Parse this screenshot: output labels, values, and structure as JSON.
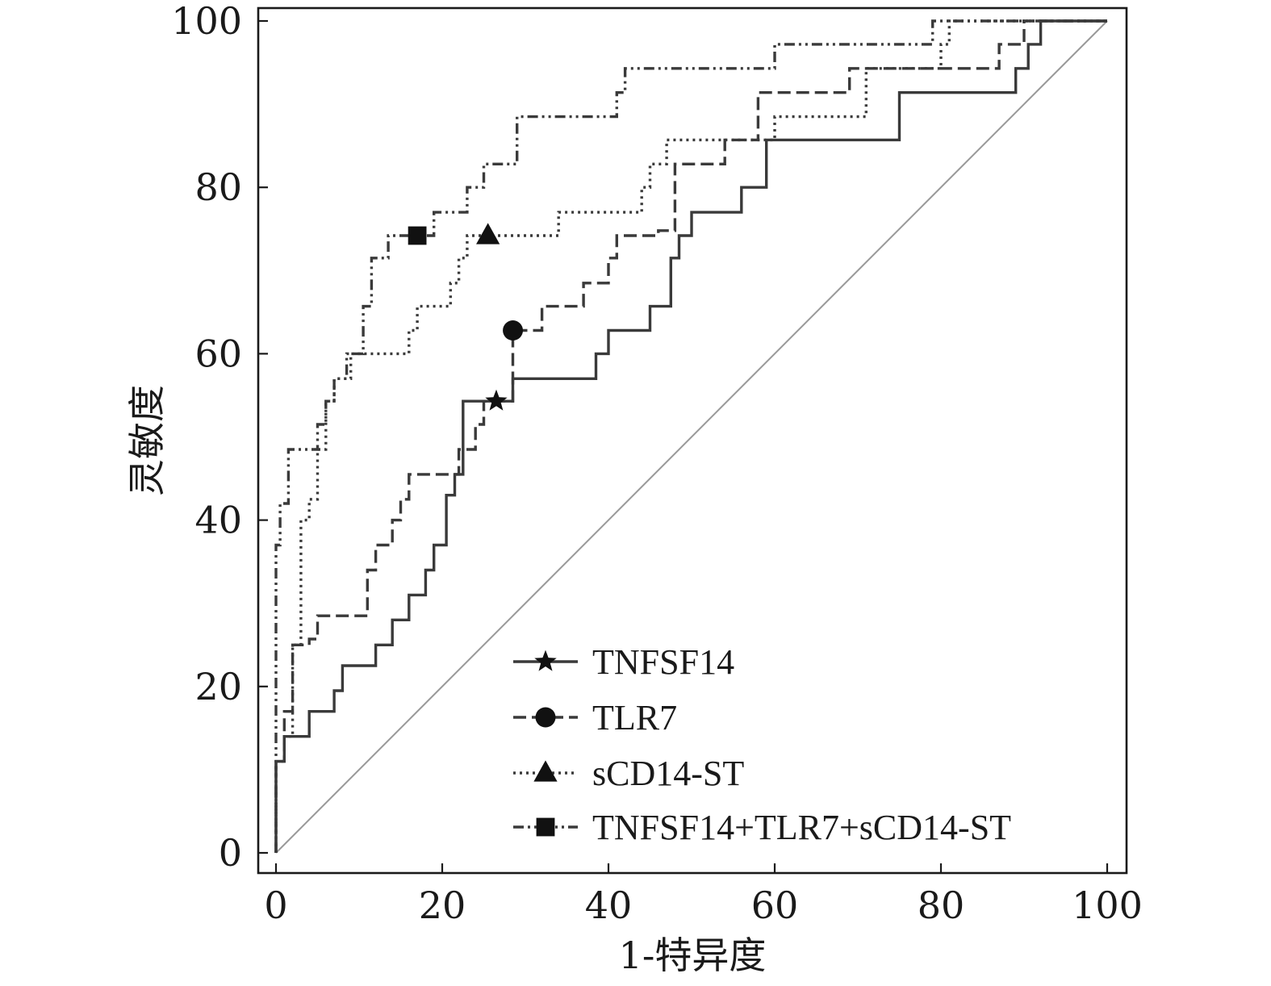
{
  "chart_data": {
    "type": "line",
    "xlabel": "1-特异度",
    "ylabel": "灵敏度",
    "xlim": [
      0,
      100
    ],
    "ylim": [
      0,
      100
    ],
    "xticks": [
      0,
      20,
      40,
      60,
      80,
      100
    ],
    "yticks": [
      0,
      20,
      40,
      60,
      80,
      100
    ],
    "legend_position": "bottom-right",
    "reference_line": {
      "from": [
        0,
        0
      ],
      "to": [
        100,
        100
      ],
      "color": "#999999"
    },
    "series": [
      {
        "name": "TNFSF14",
        "marker": "star",
        "dash": "solid",
        "color": "#3a3a3a",
        "marker_point": [
          26.5,
          54.3
        ],
        "points": [
          [
            0,
            0
          ],
          [
            0,
            11
          ],
          [
            1,
            11
          ],
          [
            1,
            14
          ],
          [
            4,
            14
          ],
          [
            4,
            17
          ],
          [
            7,
            17
          ],
          [
            7,
            19.5
          ],
          [
            8,
            19.5
          ],
          [
            8,
            22.5
          ],
          [
            12,
            22.5
          ],
          [
            12,
            25
          ],
          [
            14,
            25
          ],
          [
            14,
            28
          ],
          [
            16,
            28
          ],
          [
            16,
            31
          ],
          [
            18,
            31
          ],
          [
            18,
            34
          ],
          [
            19,
            34
          ],
          [
            19,
            37
          ],
          [
            20.5,
            37
          ],
          [
            20.5,
            43
          ],
          [
            21.5,
            43
          ],
          [
            21.5,
            45.5
          ],
          [
            22.5,
            45.5
          ],
          [
            22.5,
            54.3
          ],
          [
            28.5,
            54.3
          ],
          [
            28.5,
            57
          ],
          [
            38.5,
            57
          ],
          [
            38.5,
            60
          ],
          [
            40,
            60
          ],
          [
            40,
            62.8
          ],
          [
            45,
            62.8
          ],
          [
            45,
            65.7
          ],
          [
            47.5,
            65.7
          ],
          [
            47.5,
            71.5
          ],
          [
            48.5,
            71.5
          ],
          [
            48.5,
            74.2
          ],
          [
            50,
            74.2
          ],
          [
            50,
            77
          ],
          [
            56,
            77
          ],
          [
            56,
            80
          ],
          [
            59,
            80
          ],
          [
            59,
            85.7
          ],
          [
            75,
            85.7
          ],
          [
            75,
            91.4
          ],
          [
            89,
            91.4
          ],
          [
            89,
            94.3
          ],
          [
            90.5,
            94.3
          ],
          [
            90.5,
            97.2
          ],
          [
            92,
            97.2
          ],
          [
            92,
            100
          ],
          [
            100,
            100
          ]
        ]
      },
      {
        "name": "TLR7",
        "marker": "circle",
        "dash": "dashed",
        "color": "#3a3a3a",
        "marker_point": [
          28.5,
          62.8
        ],
        "points": [
          [
            0,
            0
          ],
          [
            0,
            11
          ],
          [
            1,
            11
          ],
          [
            1,
            17
          ],
          [
            2,
            17
          ],
          [
            2,
            25
          ],
          [
            4,
            25
          ],
          [
            4,
            25.7
          ],
          [
            5,
            25.7
          ],
          [
            5,
            28.5
          ],
          [
            11,
            28.5
          ],
          [
            11,
            34
          ],
          [
            12,
            34
          ],
          [
            12,
            37
          ],
          [
            14,
            37
          ],
          [
            14,
            40
          ],
          [
            15,
            40
          ],
          [
            15,
            42.5
          ],
          [
            16,
            42.5
          ],
          [
            16,
            45.5
          ],
          [
            22,
            45.5
          ],
          [
            22,
            48.5
          ],
          [
            24,
            48.5
          ],
          [
            24,
            51.5
          ],
          [
            25,
            51.5
          ],
          [
            25,
            54.3
          ],
          [
            28.5,
            54.3
          ],
          [
            28.5,
            62.8
          ],
          [
            32,
            62.8
          ],
          [
            32,
            65.7
          ],
          [
            37,
            65.7
          ],
          [
            37,
            68.5
          ],
          [
            40,
            68.5
          ],
          [
            40,
            71.5
          ],
          [
            41,
            71.5
          ],
          [
            41,
            74.2
          ],
          [
            46,
            74.2
          ],
          [
            46,
            74.8
          ],
          [
            48,
            74.8
          ],
          [
            48,
            82.8
          ],
          [
            54,
            82.8
          ],
          [
            54,
            85.7
          ],
          [
            58,
            85.7
          ],
          [
            58,
            91.4
          ],
          [
            69,
            91.4
          ],
          [
            69,
            94.3
          ],
          [
            87,
            94.3
          ],
          [
            87,
            97.2
          ],
          [
            90,
            97.2
          ],
          [
            90,
            100
          ],
          [
            100,
            100
          ]
        ]
      },
      {
        "name": "sCD14-ST",
        "marker": "triangle",
        "dash": "dotted",
        "color": "#3a3a3a",
        "marker_point": [
          25.5,
          74.2
        ],
        "points": [
          [
            0,
            0
          ],
          [
            0,
            11
          ],
          [
            1,
            11
          ],
          [
            1,
            14
          ],
          [
            2,
            14
          ],
          [
            2,
            25
          ],
          [
            3,
            25
          ],
          [
            3,
            40
          ],
          [
            4,
            40
          ],
          [
            4,
            42.5
          ],
          [
            5,
            42.5
          ],
          [
            5,
            48.5
          ],
          [
            6,
            48.5
          ],
          [
            6,
            54.3
          ],
          [
            7,
            54.3
          ],
          [
            7,
            57
          ],
          [
            9,
            57
          ],
          [
            9,
            60
          ],
          [
            16,
            60
          ],
          [
            16,
            62.8
          ],
          [
            17,
            62.8
          ],
          [
            17,
            65.7
          ],
          [
            21,
            65.7
          ],
          [
            21,
            68.5
          ],
          [
            22,
            68.5
          ],
          [
            22,
            71.5
          ],
          [
            23,
            71.5
          ],
          [
            23,
            74.2
          ],
          [
            34,
            74.2
          ],
          [
            34,
            77
          ],
          [
            44,
            77
          ],
          [
            44,
            80
          ],
          [
            45,
            80
          ],
          [
            45,
            82.8
          ],
          [
            47,
            82.8
          ],
          [
            47,
            85.7
          ],
          [
            60,
            85.7
          ],
          [
            60,
            88.5
          ],
          [
            71,
            88.5
          ],
          [
            71,
            94.3
          ],
          [
            80,
            94.3
          ],
          [
            80,
            97.2
          ],
          [
            81,
            97.2
          ],
          [
            81,
            100
          ],
          [
            100,
            100
          ]
        ]
      },
      {
        "name": "TNFSF14+TLR7+sCD14-ST",
        "marker": "square",
        "dash": "dash-dot",
        "color": "#3a3a3a",
        "marker_point": [
          17,
          74.2
        ],
        "points": [
          [
            0,
            0
          ],
          [
            0,
            37
          ],
          [
            0.5,
            37
          ],
          [
            0.5,
            42
          ],
          [
            1.5,
            42
          ],
          [
            1.5,
            48.5
          ],
          [
            5,
            48.5
          ],
          [
            5,
            51.5
          ],
          [
            6,
            51.5
          ],
          [
            6,
            54.3
          ],
          [
            7,
            54.3
          ],
          [
            7,
            57
          ],
          [
            8.5,
            57
          ],
          [
            8.5,
            60
          ],
          [
            10.5,
            60
          ],
          [
            10.5,
            65.7
          ],
          [
            11.5,
            65.7
          ],
          [
            11.5,
            71.5
          ],
          [
            13.5,
            71.5
          ],
          [
            13.5,
            74.2
          ],
          [
            19,
            74.2
          ],
          [
            19,
            77
          ],
          [
            23,
            77
          ],
          [
            23,
            80
          ],
          [
            25,
            80
          ],
          [
            25,
            82.8
          ],
          [
            29,
            82.8
          ],
          [
            29,
            88.5
          ],
          [
            41,
            88.5
          ],
          [
            41,
            91.4
          ],
          [
            42,
            91.4
          ],
          [
            42,
            94.3
          ],
          [
            60,
            94.3
          ],
          [
            60,
            97.2
          ],
          [
            79,
            97.2
          ],
          [
            79,
            100
          ],
          [
            100,
            100
          ]
        ]
      }
    ]
  }
}
